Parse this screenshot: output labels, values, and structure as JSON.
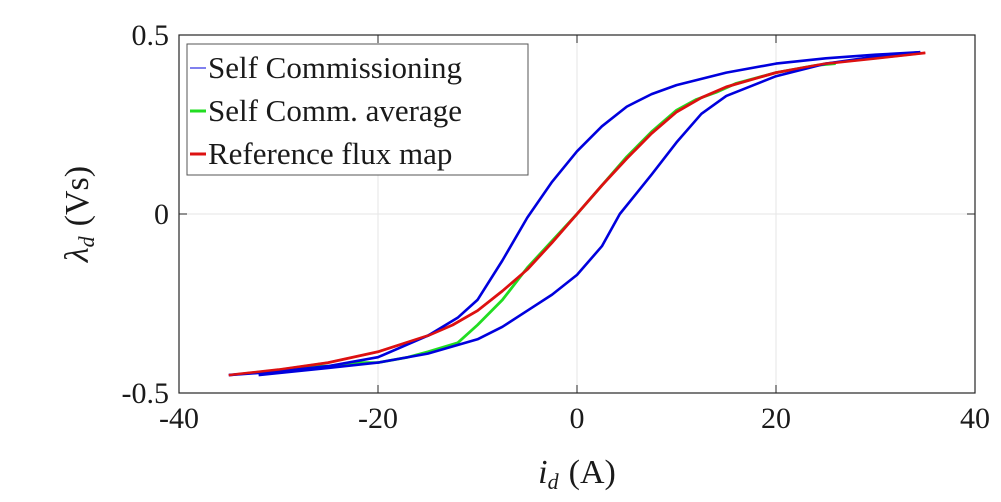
{
  "chart_data": {
    "type": "line",
    "title": "",
    "xlabel_main": "i",
    "xlabel_sub": "d",
    "xlabel_unit": "(A)",
    "ylabel_main": "λ",
    "ylabel_sub": "d",
    "ylabel_unit": "(Vs)",
    "xlim": [
      -40,
      40
    ],
    "ylim": [
      -0.5,
      0.5
    ],
    "xticks": [
      -40,
      -20,
      0,
      20,
      40
    ],
    "xtick_labels": [
      "-40",
      "-20",
      "0",
      "20",
      "40"
    ],
    "yticks": [
      -0.5,
      0,
      0.5
    ],
    "ytick_labels": [
      "-0.5",
      "0",
      "0.5"
    ],
    "grid": true,
    "legend_position": "top-left",
    "series": [
      {
        "name": "Self Commissioning",
        "color": "#0000dd",
        "segments": [
          {
            "x": [
              -35,
              -30,
              -25,
              -20,
              -15,
              -12,
              -10,
              -7.5,
              -5,
              -2.5,
              0,
              2.5,
              5,
              7.5,
              10,
              15,
              20,
              25,
              30,
              34.5
            ],
            "y": [
              -0.45,
              -0.44,
              -0.425,
              -0.4,
              -0.34,
              -0.29,
              -0.24,
              -0.13,
              -0.01,
              0.09,
              0.175,
              0.245,
              0.3,
              0.335,
              0.36,
              0.395,
              0.42,
              0.435,
              0.445,
              0.452
            ]
          },
          {
            "x": [
              -32,
              -25,
              -20,
              -15,
              -10,
              -7.5,
              -5,
              -2.5,
              0,
              2.5,
              4.3,
              7.5,
              10,
              12.5,
              15,
              20,
              25,
              30,
              34.5
            ],
            "y": [
              -0.45,
              -0.43,
              -0.415,
              -0.39,
              -0.35,
              -0.315,
              -0.27,
              -0.225,
              -0.17,
              -0.09,
              0,
              0.11,
              0.2,
              0.28,
              0.33,
              0.385,
              0.42,
              0.44,
              0.452
            ]
          }
        ]
      },
      {
        "name": "Self Comm. average",
        "color": "#22dd22",
        "segments": [
          {
            "x": [
              -30,
              -27,
              -25,
              -22,
              -20,
              -17,
              -15,
              -12,
              -10,
              -7.5,
              -5,
              -2.5,
              0,
              2.5,
              5,
              7.5,
              10,
              12,
              14,
              16,
              18,
              20,
              22,
              24,
              26
            ],
            "y": [
              -0.44,
              -0.425,
              -0.425,
              -0.415,
              -0.415,
              -0.4,
              -0.385,
              -0.36,
              -0.31,
              -0.24,
              -0.15,
              -0.075,
              0,
              0.08,
              0.16,
              0.23,
              0.29,
              0.32,
              0.34,
              0.365,
              0.38,
              0.395,
              0.405,
              0.415,
              0.42
            ]
          }
        ]
      },
      {
        "name": "Reference flux map",
        "color": "#dd1111",
        "segments": [
          {
            "x": [
              -35,
              -30,
              -25,
              -20,
              -15,
              -12.5,
              -10,
              -7.5,
              -5,
              -2.5,
              0,
              2.5,
              5,
              7.5,
              10,
              12.5,
              15,
              20,
              25,
              30,
              35
            ],
            "y": [
              -0.45,
              -0.435,
              -0.415,
              -0.385,
              -0.34,
              -0.31,
              -0.27,
              -0.215,
              -0.155,
              -0.08,
              0,
              0.08,
              0.155,
              0.225,
              0.285,
              0.325,
              0.355,
              0.395,
              0.42,
              0.435,
              0.45
            ]
          }
        ]
      }
    ]
  }
}
